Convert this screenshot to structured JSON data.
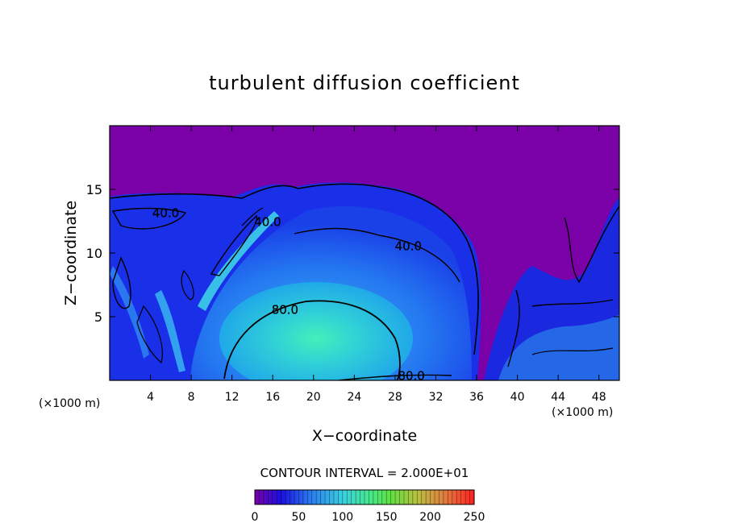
{
  "chart_data": {
    "type": "heatmap",
    "title": "turbulent diffusion coefficient",
    "xlabel": "X−coordinate",
    "ylabel": "Z−coordinate",
    "x_unit_left": "(×1000 m)",
    "x_unit_right": "(×1000 m)",
    "xlim": [
      0,
      50
    ],
    "ylim": [
      0,
      20
    ],
    "x_ticks": [
      4,
      8,
      12,
      16,
      20,
      24,
      28,
      32,
      36,
      40,
      44,
      48
    ],
    "y_ticks": [
      5,
      10,
      15
    ],
    "contour_interval_text": "CONTOUR INTERVAL = 2.000E+01",
    "colorbar": {
      "range": [
        0,
        250
      ],
      "ticks": [
        0,
        50,
        100,
        150,
        200,
        250
      ],
      "colors": [
        "#7a00a8",
        "#1a10e0",
        "#2a78f0",
        "#3ad0e0",
        "#44e890",
        "#60e040",
        "#b8c040",
        "#e08040",
        "#f03c28",
        "#ff2020"
      ]
    },
    "contour_labels": [
      {
        "text": "40.0",
        "x": 5.5,
        "z": 13.2
      },
      {
        "text": "40.0",
        "x": 15.5,
        "z": 12.5
      },
      {
        "text": "40.0",
        "x": 29.3,
        "z": 10.6
      },
      {
        "text": "80.0",
        "x": 17.2,
        "z": 5.6
      },
      {
        "text": "80.0",
        "x": 29.6,
        "z": 0.4
      }
    ],
    "background_value_above_cloud": 0,
    "core_value_peak": 120
  }
}
